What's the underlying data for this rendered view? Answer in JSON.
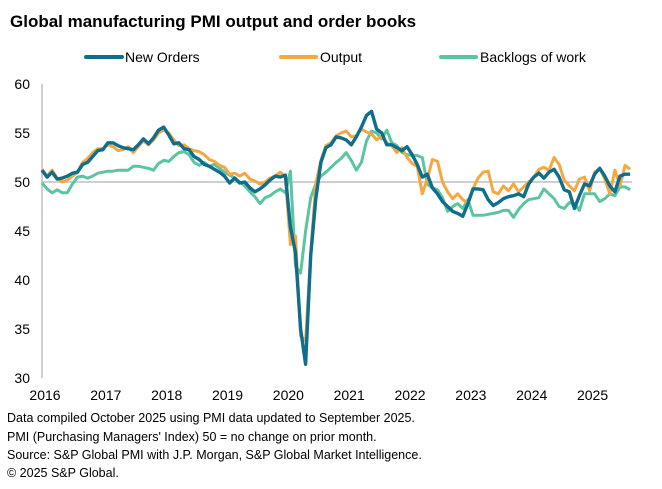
{
  "chart_data": {
    "type": "line",
    "title": "Global manufacturing PMI output and order books",
    "xlabel": "",
    "ylabel": "",
    "ylim": [
      30,
      60
    ],
    "yticks": [
      "60",
      "55",
      "50",
      "45",
      "40",
      "35",
      "30"
    ],
    "xticks": [
      "2016",
      "2017",
      "2018",
      "2019",
      "2020",
      "2021",
      "2022",
      "2023",
      "2024",
      "2025"
    ],
    "x_start": "2016-01",
    "x_end": "2025-09",
    "frequency": "monthly",
    "reference_line": 50,
    "legend_position": "top",
    "grid": false,
    "series": [
      {
        "name": "New Orders",
        "color": "#0f6e8c",
        "values": [
          51.2,
          50.5,
          51.0,
          50.3,
          50.4,
          50.6,
          50.9,
          51.0,
          51.8,
          52.0,
          52.6,
          53.2,
          53.3,
          54.0,
          54.0,
          53.7,
          53.5,
          53.4,
          53.3,
          53.8,
          54.4,
          53.9,
          54.5,
          55.3,
          55.6,
          54.8,
          53.9,
          54.0,
          53.4,
          53.3,
          52.6,
          52.3,
          51.8,
          51.6,
          51.3,
          51.0,
          50.6,
          49.9,
          50.4,
          49.9,
          50.0,
          49.4,
          49.0,
          49.3,
          49.7,
          50.2,
          50.6,
          50.5,
          50.7,
          45.4,
          42.8,
          35.0,
          31.4,
          42.5,
          48.3,
          52.0,
          53.5,
          53.8,
          54.6,
          54.5,
          54.3,
          53.8,
          54.6,
          55.6,
          56.8,
          57.2,
          55.4,
          55.0,
          53.8,
          53.8,
          53.5,
          53.2,
          53.6,
          52.8,
          51.8,
          50.5,
          50.8,
          49.4,
          48.8,
          48.0,
          47.5,
          47.0,
          46.8,
          46.5,
          47.8,
          49.3,
          49.3,
          49.2,
          48.2,
          47.6,
          47.9,
          48.3,
          48.5,
          48.6,
          48.8,
          48.5,
          49.8,
          50.5,
          50.9,
          50.4,
          51.0,
          51.3,
          50.5,
          49.2,
          49.0,
          47.3,
          48.6,
          49.8,
          49.6,
          50.8,
          51.4,
          50.6,
          49.6,
          49.0,
          50.6,
          50.8,
          50.8
        ]
      },
      {
        "name": "Output",
        "color": "#f5a742",
        "values": [
          51.3,
          50.6,
          51.2,
          50.4,
          50.0,
          50.2,
          50.6,
          51.0,
          52.0,
          52.4,
          53.0,
          53.4,
          53.4,
          53.8,
          53.6,
          53.2,
          53.3,
          53.6,
          53.0,
          53.6,
          54.2,
          53.8,
          54.3,
          55.0,
          55.3,
          55.0,
          54.3,
          53.7,
          53.8,
          53.4,
          53.2,
          53.1,
          52.8,
          52.3,
          52.1,
          51.7,
          51.5,
          50.8,
          50.9,
          50.6,
          50.9,
          50.3,
          50.1,
          49.8,
          50.0,
          50.4,
          50.6,
          51.0,
          50.5,
          43.6,
          44.5,
          34.3,
          33.8,
          42.8,
          49.8,
          52.2,
          53.7,
          54.0,
          54.7,
          55.0,
          55.2,
          54.6,
          54.7,
          55.4,
          55.1,
          54.9,
          54.3,
          54.7,
          54.0,
          53.7,
          53.0,
          53.5,
          52.5,
          51.9,
          51.6,
          48.8,
          50.3,
          52.3,
          52.1,
          50.0,
          49.0,
          48.3,
          48.8,
          48.2,
          47.8,
          49.3,
          50.4,
          51.0,
          51.1,
          49.0,
          48.8,
          49.6,
          49.1,
          49.8,
          49.0,
          49.5,
          50.0,
          50.5,
          51.3,
          51.5,
          51.2,
          52.5,
          51.8,
          50.2,
          49.6,
          49.1,
          50.3,
          50.5,
          49.1,
          51.0,
          51.4,
          50.3,
          48.8,
          51.2,
          49.6,
          51.7,
          51.3
        ]
      },
      {
        "name": "Backlogs of work",
        "color": "#5bc4a0",
        "values": [
          49.9,
          49.3,
          48.9,
          49.2,
          48.9,
          48.9,
          49.8,
          50.5,
          50.6,
          50.4,
          50.6,
          50.9,
          51.0,
          51.1,
          51.1,
          51.2,
          51.2,
          51.2,
          51.6,
          51.6,
          51.5,
          51.4,
          51.2,
          51.9,
          52.2,
          52.1,
          52.6,
          53.0,
          53.1,
          52.8,
          52.0,
          51.7,
          52.0,
          51.6,
          51.8,
          51.4,
          51.0,
          50.7,
          50.4,
          50.0,
          49.6,
          49.0,
          48.5,
          47.8,
          48.4,
          48.6,
          49.0,
          49.3,
          48.9,
          51.1,
          41.4,
          40.7,
          45.0,
          48.4,
          49.8,
          50.6,
          51.0,
          51.5,
          52.0,
          52.4,
          53.0,
          52.2,
          51.2,
          52.0,
          54.2,
          55.2,
          55.0,
          54.4,
          55.3,
          54.0,
          53.7,
          53.0,
          52.8,
          52.7,
          52.7,
          52.5,
          49.8,
          49.4,
          49.2,
          48.4,
          47.0,
          47.5,
          47.8,
          47.3,
          48.2,
          46.6,
          46.6,
          46.6,
          46.7,
          46.8,
          46.9,
          47.1,
          47.1,
          46.4,
          47.2,
          47.8,
          48.2,
          48.3,
          48.4,
          49.3,
          48.8,
          48.3,
          47.5,
          47.3,
          47.9,
          47.8,
          47.1,
          48.8,
          48.8,
          48.8,
          48.0,
          48.3,
          48.8,
          48.6,
          49.5,
          49.5,
          49.2
        ]
      }
    ]
  },
  "footnotes": [
    "Data compiled October 2025 using PMI data updated to September 2025.",
    "PMI (Purchasing Managers' Index) 50 = no change on prior month.",
    "Source: S&P Global PMI with J.P. Morgan, S&P Global Market Intelligence.",
    "© 2025 S&P Global."
  ],
  "colors": {
    "axis": "#bfbfbf",
    "reference_line": "#bfbfbf"
  }
}
